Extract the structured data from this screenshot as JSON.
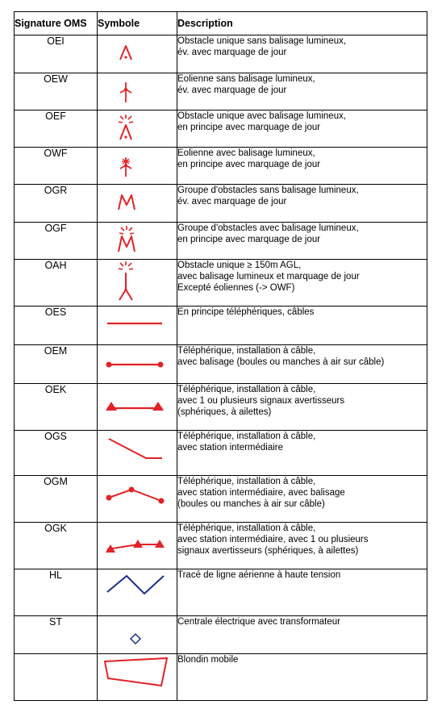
{
  "headers": {
    "signature": "Signature OMS",
    "symbol": "Symbole",
    "description": "Description"
  },
  "colors": {
    "red": "#e32227",
    "blue": "#1d2d8c"
  },
  "rows": [
    {
      "code": "OEI",
      "symbol": "single-obstacle-icon",
      "lines": [
        "Obstacle unique sans balisage lumineux,",
        "év. avec marquage de jour"
      ]
    },
    {
      "code": "OEW",
      "symbol": "wind-turbine-icon",
      "lines": [
        "Eolienne sans balisage lumineux,",
        "év. avec marquage de jour"
      ]
    },
    {
      "code": "OEF",
      "symbol": "lit-obstacle-icon",
      "lines": [
        "Obstacle unique avec balisage lumineux,",
        "en principe avec marquage de jour"
      ]
    },
    {
      "code": "OWF",
      "symbol": "lit-wind-turbine-icon",
      "lines": [
        "Eolienne avec balisage lumineux,",
        "en principe avec marquage de jour"
      ]
    },
    {
      "code": "OGR",
      "symbol": "obstacle-group-icon",
      "lines": [
        "Groupe d'obstacles sans balisage lumineux,",
        "év. avec marquage de jour"
      ]
    },
    {
      "code": "OGF",
      "symbol": "lit-obstacle-group-icon",
      "lines": [
        "Groupe d'obstacles avec balisage lumineux,",
        "en principe avec marquage de jour"
      ]
    },
    {
      "code": "OAH",
      "symbol": "tall-obstacle-icon",
      "lines": [
        "Obstacle unique ≥ 150m AGL,",
        "avec balisage lumineux et marquage de jour",
        "Excepté éoliennes (-> OWF)"
      ]
    },
    {
      "code": "OES",
      "symbol": "cable-line-icon",
      "lines": [
        "En principe téléphériques, câbles"
      ]
    },
    {
      "code": "OEM",
      "symbol": "marked-cable-icon",
      "lines": [
        "Téléphérique, installation à câble,",
        "avec balisage (boules ou manches à air sur câble)"
      ]
    },
    {
      "code": "OEK",
      "symbol": "warning-cable-icon",
      "lines": [
        "Téléphérique, installation à câble,",
        "avec 1 ou plusieurs signaux avertisseurs",
        "(sphériques, à ailettes)"
      ]
    },
    {
      "code": "OGS",
      "symbol": "cable-station-icon",
      "lines": [
        "Téléphérique, installation à câble,",
        "avec station intermédiaire"
      ]
    },
    {
      "code": "OGM",
      "symbol": "marked-cable-station-icon",
      "lines": [
        "Téléphérique, installation à câble,",
        "avec station intermédiaire, avec balisage",
        "(boules ou manches à air sur câble)"
      ]
    },
    {
      "code": "OGK",
      "symbol": "warning-cable-station-icon",
      "lines": [
        "Téléphérique, installation à câble,",
        "avec station intermédiaire, avec 1 ou plusieurs",
        "signaux avertisseurs (sphériques, à ailettes)"
      ]
    },
    {
      "code": "HL",
      "symbol": "power-line-icon",
      "lines": [
        "Tracé de ligne aérienne à haute tension"
      ]
    },
    {
      "code": "ST",
      "symbol": "power-station-icon",
      "lines": [
        "Centrale électrique avec transformateur"
      ]
    },
    {
      "code": "",
      "symbol": "mobile-cable-crane-icon",
      "lines": [
        "Blondin mobile"
      ]
    }
  ]
}
